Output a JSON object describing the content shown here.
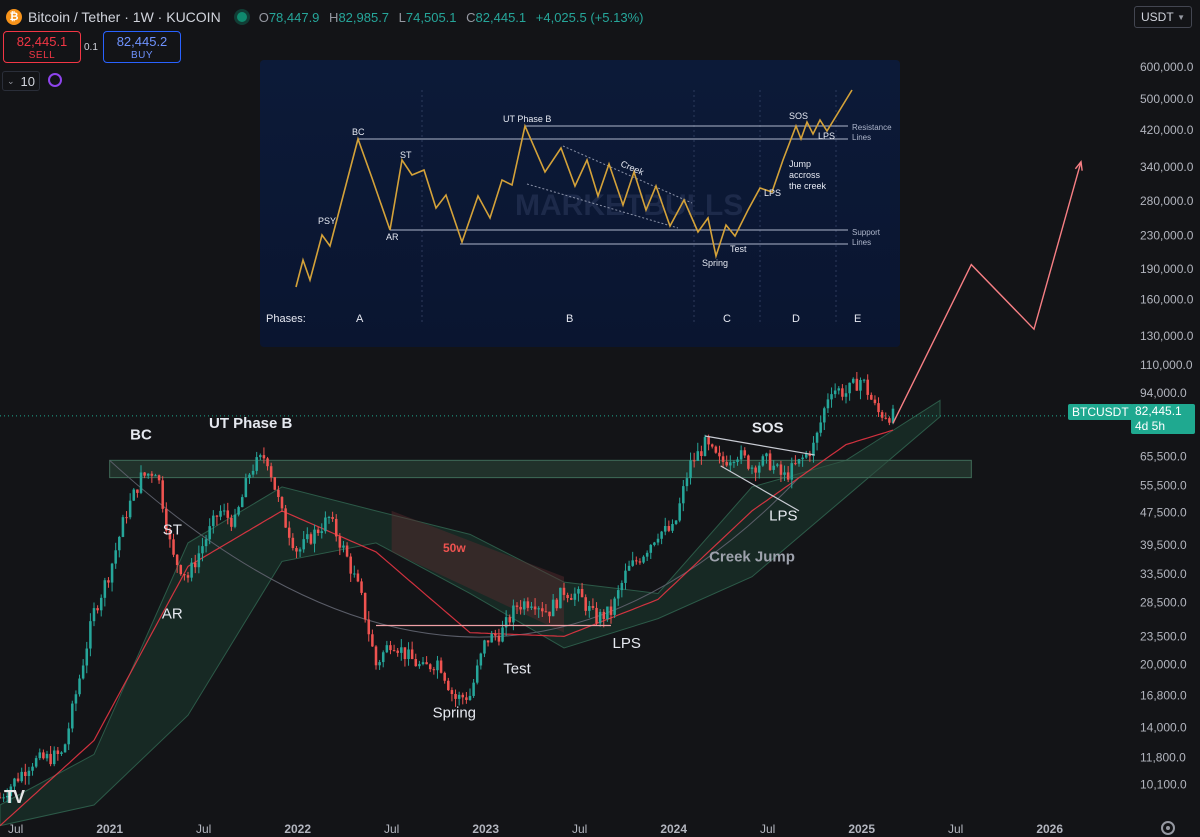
{
  "header": {
    "title": "Bitcoin / Tether · 1W · KUCOIN",
    "ohlc": [
      {
        "label": "O",
        "value": "78,447.9"
      },
      {
        "label": "H",
        "value": "82,985.7"
      },
      {
        "label": "L",
        "value": "74,505.1"
      },
      {
        "label": "C",
        "value": "82,445.1"
      }
    ],
    "change": "+4,025.5 (+5.13%)"
  },
  "trade": {
    "sell_price": "82,445.1",
    "sell_label": "SELL",
    "spread": "0.1",
    "buy_price": "82,445.2",
    "buy_label": "BUY",
    "quantity": "10"
  },
  "currency": "USDT",
  "price_tag": {
    "symbol": "BTCUSDT",
    "price": "82,445.1",
    "countdown": "4d 5h"
  },
  "colors": {
    "background": "#131417",
    "up": "#26a69a",
    "down": "#ef5350",
    "ma50w": "#f23645",
    "cloud": "#1c3a30",
    "projection": "#f77f84",
    "accent": "#1fa990"
  },
  "icons": [
    "bitcoin-logo-icon",
    "market-status-icon",
    "chevron-down-icon",
    "loop-icon",
    "tradingview-logo-icon",
    "settings-icon"
  ],
  "branding": {
    "logo_text": "TV"
  },
  "chart_data": {
    "type": "candlestick",
    "y_scale": "log",
    "ylim": [
      9000,
      700000
    ],
    "y_ticks": [
      600000,
      500000,
      420000,
      340000,
      280000,
      230000,
      190000,
      160000,
      130000,
      110000,
      94000,
      65500,
      55500,
      47500,
      39500,
      33500,
      28500,
      23500,
      20000,
      16800,
      14000,
      11800,
      10100
    ],
    "y_tick_labels": [
      "600,000.0",
      "500,000.0",
      "420,000.0",
      "340,000.0",
      "280,000.0",
      "230,000.0",
      "190,000.0",
      "160,000.0",
      "130,000.0",
      "110,000.0",
      "94,000.0",
      "65,500.0",
      "55,500.0",
      "47,500.0",
      "39,500.0",
      "33,500.0",
      "28,500.0",
      "23,500.0",
      "20,000.0",
      "16,800.0",
      "14,000.0",
      "11,800.0",
      "10,100.0"
    ],
    "x_range": [
      "2020-06",
      "2026-06"
    ],
    "x_ticks": [
      {
        "date": "2020-07",
        "label": "Jul"
      },
      {
        "date": "2021-01",
        "label": "2021"
      },
      {
        "date": "2021-07",
        "label": "Jul"
      },
      {
        "date": "2022-01",
        "label": "2022"
      },
      {
        "date": "2022-07",
        "label": "Jul"
      },
      {
        "date": "2023-01",
        "label": "2023"
      },
      {
        "date": "2023-07",
        "label": "Jul"
      },
      {
        "date": "2024-01",
        "label": "2024"
      },
      {
        "date": "2024-07",
        "label": "Jul"
      },
      {
        "date": "2025-01",
        "label": "2025"
      },
      {
        "date": "2025-07",
        "label": "Jul"
      },
      {
        "date": "2026-01",
        "label": "2026"
      }
    ],
    "close_path": [
      [
        "2020-06",
        9400
      ],
      [
        "2020-08",
        11500
      ],
      [
        "2020-10",
        12000
      ],
      [
        "2020-11",
        18000
      ],
      [
        "2020-12",
        27000
      ],
      [
        "2021-01",
        34000
      ],
      [
        "2021-02",
        47000
      ],
      [
        "2021-03",
        58000
      ],
      [
        "2021-04",
        61000
      ],
      [
        "2021-05",
        37000
      ],
      [
        "2021-06",
        33000
      ],
      [
        "2021-07",
        40000
      ],
      [
        "2021-08",
        48000
      ],
      [
        "2021-09",
        45000
      ],
      [
        "2021-10",
        61000
      ],
      [
        "2021-11",
        66000
      ],
      [
        "2021-12",
        47000
      ],
      [
        "2022-01",
        38000
      ],
      [
        "2022-02",
        42000
      ],
      [
        "2022-03",
        46000
      ],
      [
        "2022-04",
        38000
      ],
      [
        "2022-05",
        30000
      ],
      [
        "2022-06",
        20000
      ],
      [
        "2022-07",
        23000
      ],
      [
        "2022-08",
        21000
      ],
      [
        "2022-09",
        19500
      ],
      [
        "2022-10",
        20500
      ],
      [
        "2022-11",
        16500
      ],
      [
        "2022-12",
        16800
      ],
      [
        "2023-01",
        23000
      ],
      [
        "2023-02",
        24000
      ],
      [
        "2023-03",
        28000
      ],
      [
        "2023-04",
        29000
      ],
      [
        "2023-05",
        27000
      ],
      [
        "2023-06",
        30500
      ],
      [
        "2023-07",
        29500
      ],
      [
        "2023-08",
        26000
      ],
      [
        "2023-09",
        27000
      ],
      [
        "2023-10",
        34000
      ],
      [
        "2023-11",
        37500
      ],
      [
        "2023-12",
        42500
      ],
      [
        "2024-01",
        43000
      ],
      [
        "2024-02",
        62000
      ],
      [
        "2024-03",
        70000
      ],
      [
        "2024-04",
        63000
      ],
      [
        "2024-05",
        67000
      ],
      [
        "2024-06",
        62000
      ],
      [
        "2024-07",
        64000
      ],
      [
        "2024-08",
        58000
      ],
      [
        "2024-09",
        63000
      ],
      [
        "2024-10",
        70000
      ],
      [
        "2024-11",
        97000
      ],
      [
        "2024-12",
        94000
      ],
      [
        "2025-01",
        102000
      ],
      [
        "2025-02",
        84000
      ],
      [
        "2025-03",
        82445
      ]
    ],
    "ma_50w": {
      "label": "50w",
      "points": [
        [
          "2020-06",
          8000
        ],
        [
          "2020-12",
          13000
        ],
        [
          "2021-06",
          35000
        ],
        [
          "2021-12",
          48000
        ],
        [
          "2022-06",
          38000
        ],
        [
          "2022-12",
          24000
        ],
        [
          "2023-06",
          23500
        ],
        [
          "2023-12",
          29000
        ],
        [
          "2024-06",
          48000
        ],
        [
          "2024-12",
          70000
        ],
        [
          "2025-03",
          76000
        ]
      ]
    },
    "cloud": {
      "upper": [
        [
          "2020-06",
          9000
        ],
        [
          "2020-12",
          12000
        ],
        [
          "2021-06",
          40000
        ],
        [
          "2021-12",
          55000
        ],
        [
          "2022-06",
          48000
        ],
        [
          "2022-12",
          42000
        ],
        [
          "2023-06",
          32000
        ],
        [
          "2023-12",
          30000
        ],
        [
          "2024-06",
          55000
        ],
        [
          "2024-12",
          64000
        ],
        [
          "2025-06",
          90000
        ]
      ],
      "lower": [
        [
          "2020-06",
          8000
        ],
        [
          "2020-12",
          9000
        ],
        [
          "2021-06",
          15000
        ],
        [
          "2021-12",
          36000
        ],
        [
          "2022-06",
          40000
        ],
        [
          "2022-12",
          30000
        ],
        [
          "2023-06",
          22000
        ],
        [
          "2023-12",
          26000
        ],
        [
          "2024-06",
          33000
        ],
        [
          "2024-12",
          52000
        ],
        [
          "2025-06",
          82000
        ]
      ]
    },
    "projection": [
      [
        "2025-03",
        79000
      ],
      [
        "2025-08",
        195000
      ],
      [
        "2025-12",
        135000
      ],
      [
        "2026-03",
        350000
      ]
    ],
    "annotations": [
      {
        "text": "BC",
        "date": "2021-03",
        "price": 72000
      },
      {
        "text": "UT Phase B",
        "date": "2021-10",
        "price": 77000
      },
      {
        "text": "ST",
        "date": "2021-05",
        "price": 42000
      },
      {
        "text": "AR",
        "date": "2021-05",
        "price": 26000
      },
      {
        "text": "50w",
        "date": "2022-11",
        "price": 38000
      },
      {
        "text": "Spring",
        "date": "2022-11",
        "price": 14800
      },
      {
        "text": "Test",
        "date": "2023-03",
        "price": 19000
      },
      {
        "text": "LPS",
        "date": "2023-10",
        "price": 22000
      },
      {
        "text": "Creek Jump",
        "date": "2024-06",
        "price": 36000
      },
      {
        "text": "SOS",
        "date": "2024-07",
        "price": 75000
      },
      {
        "text": "LPS",
        "date": "2024-08",
        "price": 45500
      }
    ],
    "resistance_band": [
      58000,
      64000
    ],
    "current_price": 82445.1
  },
  "inset": {
    "watermark": "MARKETBULLS",
    "phase_title": "Phases:",
    "phases": [
      "A",
      "B",
      "C",
      "D",
      "E"
    ],
    "labels": [
      "PSY",
      "BC",
      "ST",
      "AR",
      "UT Phase B",
      "Creek",
      "Spring",
      "Test",
      "LPS",
      "SOS",
      "LPS",
      "Jump",
      "accross",
      "the creek"
    ],
    "resistance_label": [
      "Resistance",
      "Lines"
    ],
    "support_label": [
      "Support",
      "Lines"
    ]
  }
}
